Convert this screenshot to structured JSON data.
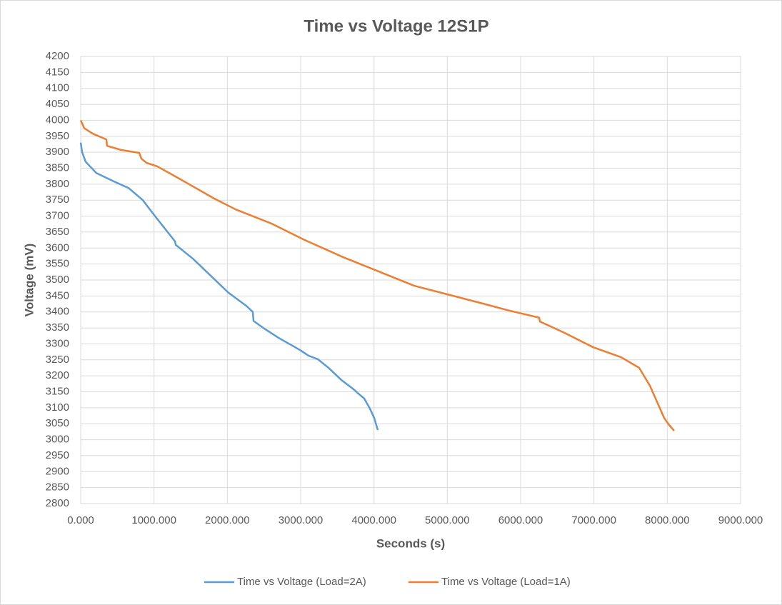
{
  "chart_data": {
    "type": "line",
    "title": "Time vs Voltage 12S1P",
    "x_label": "Seconds (s)",
    "y_label": "Voltage (mV)",
    "xlim": [
      0,
      9000
    ],
    "xticks": [
      {
        "value": 0,
        "label": "0.000"
      },
      {
        "value": 1000,
        "label": "1000.000"
      },
      {
        "value": 2000,
        "label": "2000.000"
      },
      {
        "value": 3000,
        "label": "3000.000"
      },
      {
        "value": 4000,
        "label": "4000.000"
      },
      {
        "value": 5000,
        "label": "5000.000"
      },
      {
        "value": 6000,
        "label": "6000.000"
      },
      {
        "value": 7000,
        "label": "7000.000"
      },
      {
        "value": 8000,
        "label": "8000.000"
      },
      {
        "value": 9000,
        "label": "9000.000"
      }
    ],
    "ylim": [
      2800,
      4200
    ],
    "yticks": [
      2800,
      2850,
      2900,
      2950,
      3000,
      3050,
      3100,
      3150,
      3200,
      3250,
      3300,
      3350,
      3400,
      3450,
      3500,
      3550,
      3600,
      3650,
      3700,
      3750,
      3800,
      3850,
      3900,
      3950,
      4000,
      4050,
      4100,
      4150,
      4200
    ],
    "grid": true,
    "legend": "bottom",
    "series": [
      {
        "name": "Time vs Voltage (Load=2A)",
        "color": "#5b9bd5",
        "x": [
          0,
          20,
          68,
          214,
          458,
          653,
          847,
          993,
          1286,
          1296,
          1529,
          2016,
          2260,
          2347,
          2357,
          2503,
          2698,
          2990,
          3107,
          3234,
          3380,
          3555,
          3721,
          3799,
          3867,
          3945,
          4003,
          4052
        ],
        "values": [
          3930,
          3900,
          3870,
          3835,
          3808,
          3788,
          3750,
          3706,
          3621,
          3610,
          3567,
          3460,
          3419,
          3400,
          3372,
          3348,
          3319,
          3281,
          3263,
          3252,
          3225,
          3187,
          3158,
          3142,
          3129,
          3097,
          3068,
          3030
        ]
      },
      {
        "name": "Time vs Voltage (Load=1A)",
        "color": "#ed7d31",
        "x": [
          0,
          20,
          49,
          166,
          350,
          360,
          555,
          799,
          828,
          896,
          1042,
          1432,
          1821,
          2114,
          2600,
          3039,
          3575,
          4062,
          4549,
          5036,
          5523,
          5815,
          6253,
          6263,
          6594,
          6984,
          7373,
          7617,
          7763,
          7958,
          8026,
          8094
        ],
        "values": [
          4000,
          3990,
          3975,
          3958,
          3940,
          3920,
          3907,
          3898,
          3880,
          3867,
          3856,
          3806,
          3755,
          3721,
          3677,
          3627,
          3572,
          3527,
          3482,
          3453,
          3424,
          3406,
          3382,
          3370,
          3335,
          3290,
          3258,
          3225,
          3169,
          3068,
          3046,
          3028
        ]
      }
    ]
  }
}
